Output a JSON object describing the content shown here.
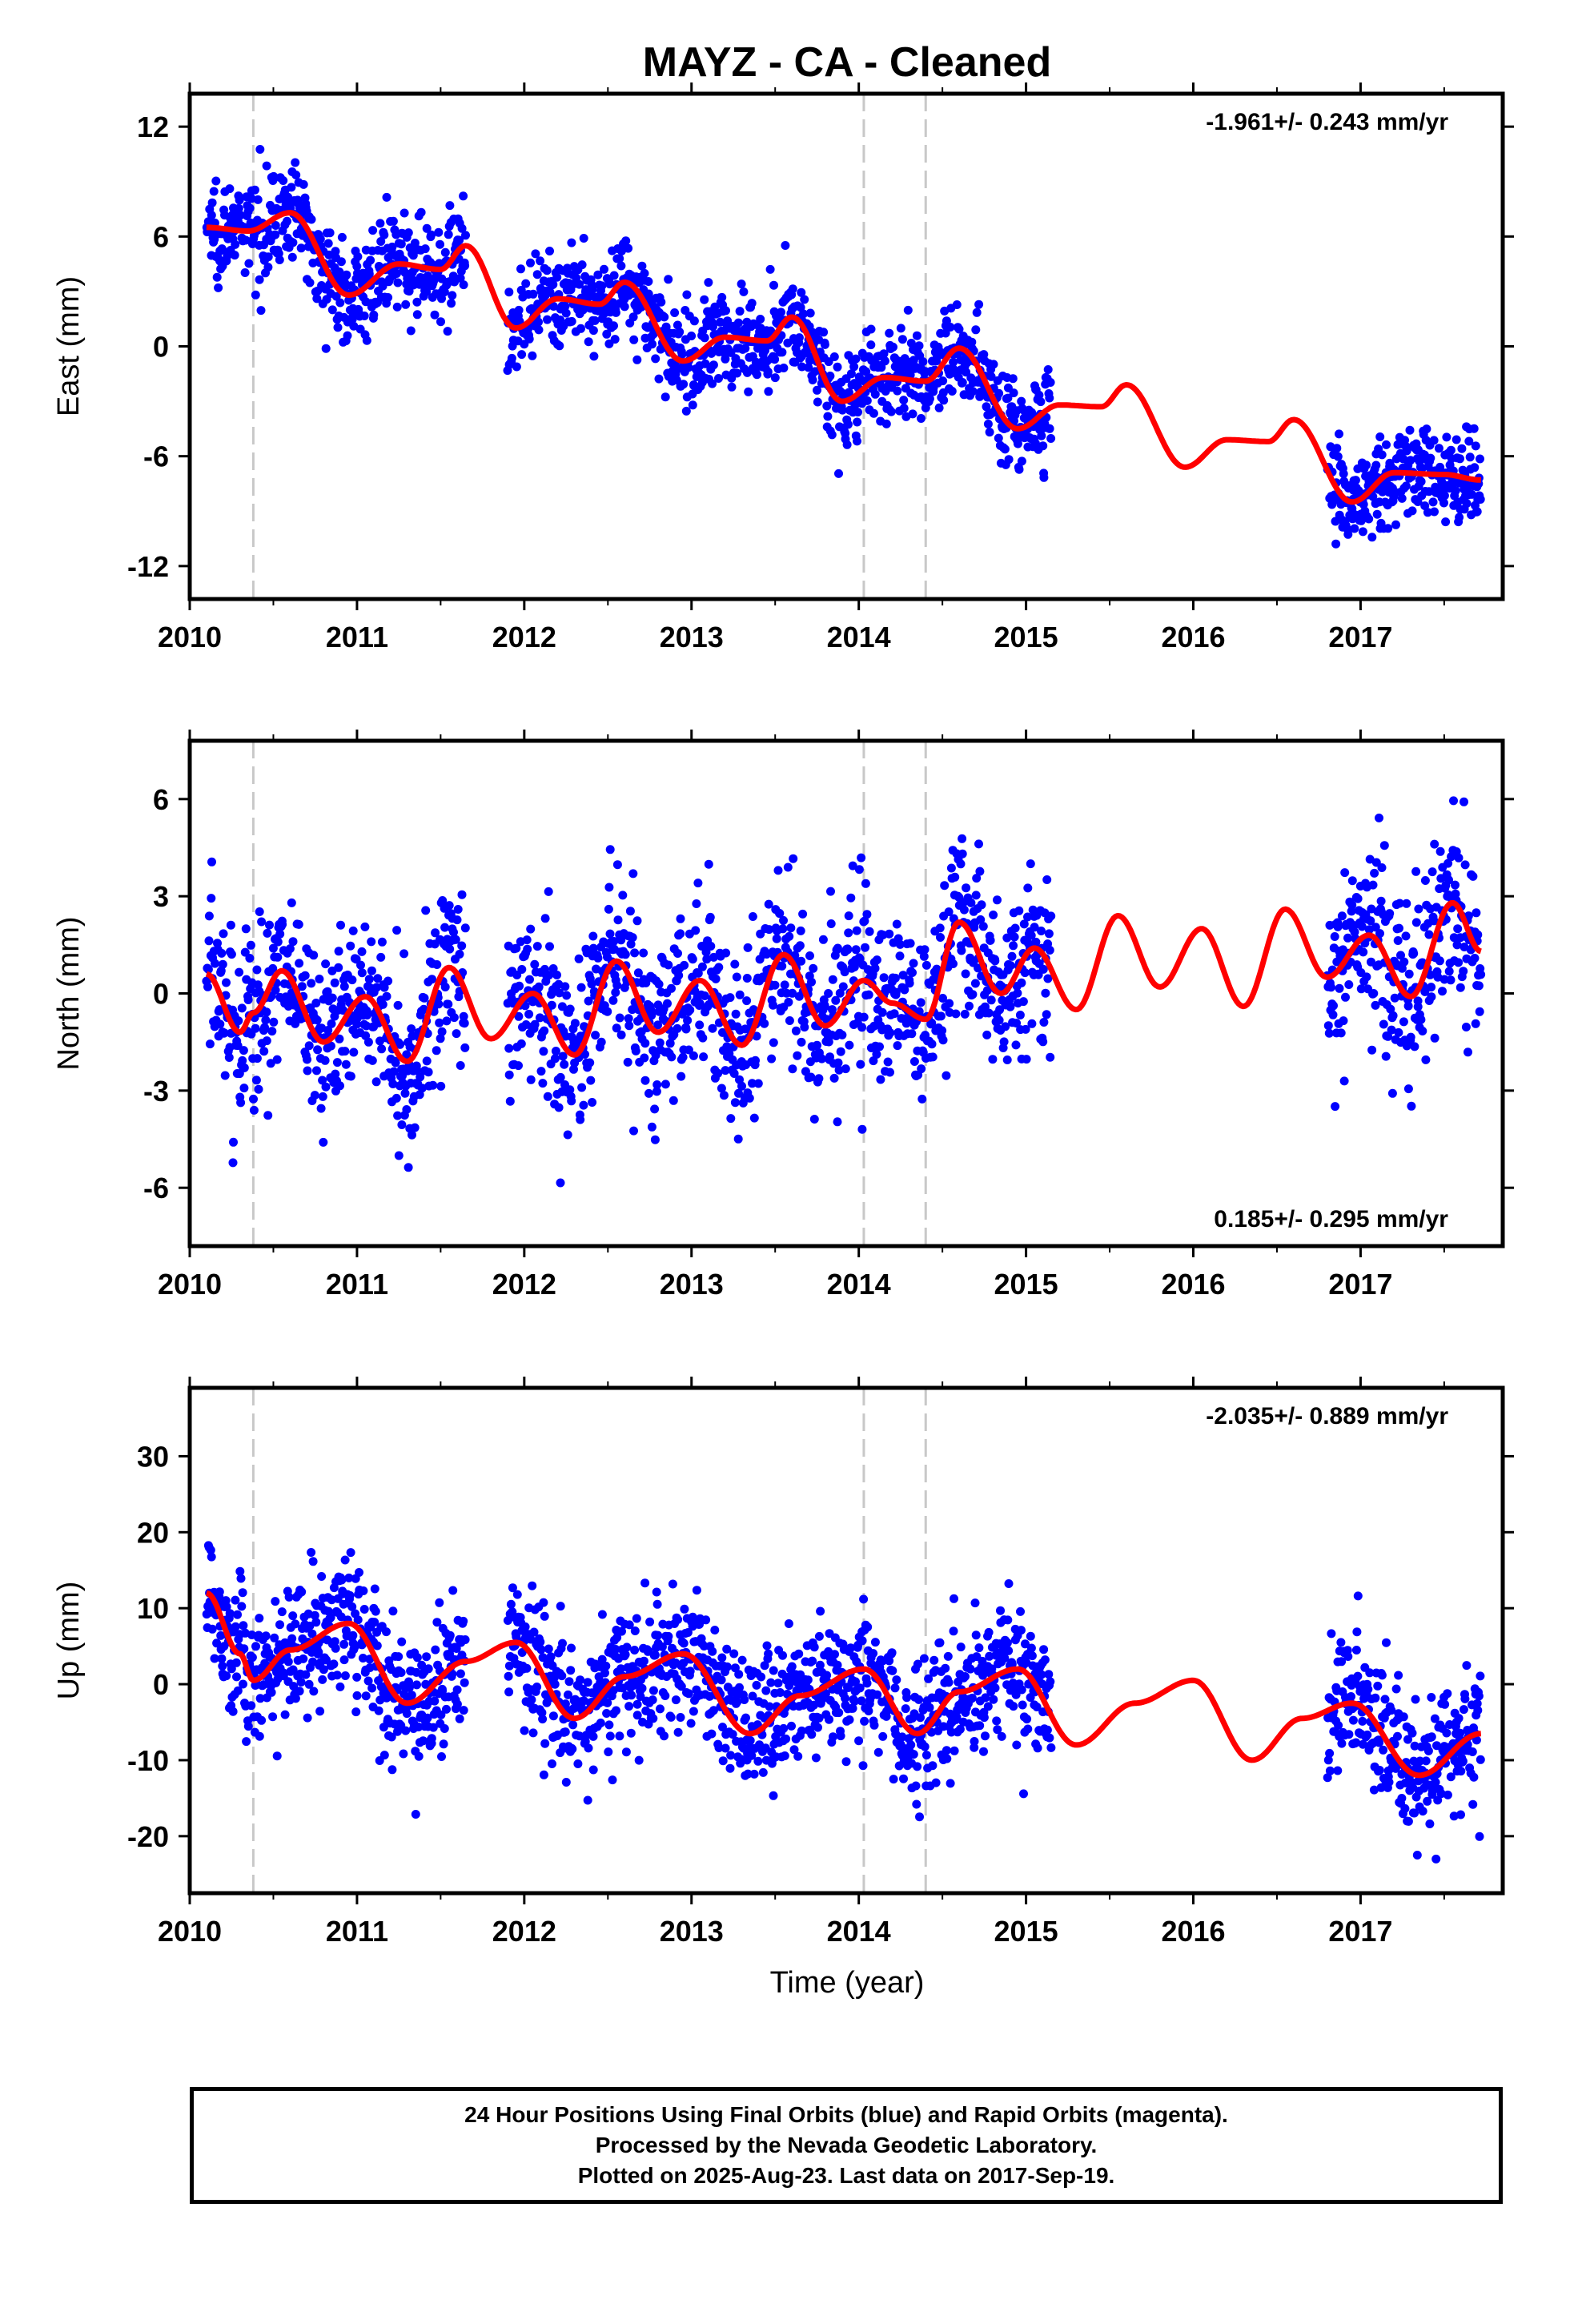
{
  "page": {
    "title": "MAYZ  - CA - Cleaned",
    "xlabel": "Time (year)"
  },
  "colors": {
    "points": "#0000ff",
    "fit": "#ff0000",
    "offset_lines": "#c8c8c8",
    "axis": "#000000"
  },
  "footer": {
    "line1": "24 Hour Positions Using Final Orbits (blue) and Rapid Orbits (magenta).",
    "line2": "Processed by the Nevada Geodetic Laboratory.",
    "line3": "Plotted on 2025-Aug-23. Last data on 2017-Sep-19."
  },
  "chart_data": [
    {
      "type": "scatter",
      "component": "east",
      "ylabel": "East (mm)",
      "rate_label": "-1.961+/- 0.243 mm/yr",
      "rate_label_position": "top-right",
      "xlim": [
        2010.0,
        2017.85
      ],
      "ylim": [
        -13.8,
        13.8
      ],
      "xticks": [
        2010,
        2011,
        2012,
        2013,
        2014,
        2015,
        2016,
        2017
      ],
      "yticks": [
        12,
        6,
        0,
        -6,
        -12
      ],
      "offsets": [
        2010.38,
        2014.03,
        2014.4
      ],
      "data_ranges": [
        [
          2010.1,
          2011.65
        ],
        [
          2011.9,
          2015.15
        ],
        [
          2016.8,
          2017.72
        ]
      ],
      "noise": 1.3,
      "fit": {
        "x": [
          2010.1,
          2010.35,
          2010.6,
          2010.95,
          2011.25,
          2011.5,
          2011.65,
          2011.95,
          2012.2,
          2012.45,
          2012.6,
          2012.95,
          2013.2,
          2013.45,
          2013.6,
          2013.9,
          2014.15,
          2014.4,
          2014.6,
          2014.95,
          2015.2,
          2015.45,
          2015.6,
          2015.95,
          2016.2,
          2016.45,
          2016.6,
          2016.95,
          2017.2,
          2017.5,
          2017.72
        ],
        "y": [
          6.5,
          6.3,
          7.3,
          2.8,
          4.5,
          4.2,
          5.5,
          1.0,
          2.6,
          2.3,
          3.5,
          -0.8,
          0.5,
          0.3,
          1.6,
          -3.0,
          -1.7,
          -1.9,
          -0.1,
          -4.5,
          -3.2,
          -3.3,
          -2.1,
          -6.6,
          -5.1,
          -5.2,
          -4.0,
          -8.5,
          -6.9,
          -7.0,
          -7.3
        ]
      }
    },
    {
      "type": "scatter",
      "component": "north",
      "ylabel": "North (mm)",
      "rate_label": "0.185+/- 0.295 mm/yr",
      "rate_label_position": "bottom-right",
      "xlim": [
        2010.0,
        2017.85
      ],
      "ylim": [
        -7.8,
        7.8
      ],
      "xticks": [
        2010,
        2011,
        2012,
        2013,
        2014,
        2015,
        2016,
        2017
      ],
      "yticks": [
        6,
        3,
        0,
        -3,
        -6
      ],
      "offsets": [
        2010.38,
        2014.03,
        2014.4
      ],
      "data_ranges": [
        [
          2010.1,
          2011.65
        ],
        [
          2011.9,
          2015.15
        ],
        [
          2016.8,
          2017.72
        ]
      ],
      "noise": 1.4,
      "fit": {
        "x": [
          2010.1,
          2010.3,
          2010.38,
          2010.55,
          2010.8,
          2011.05,
          2011.3,
          2011.55,
          2011.8,
          2012.05,
          2012.3,
          2012.55,
          2012.8,
          2013.05,
          2013.3,
          2013.55,
          2013.8,
          2014.03,
          2014.2,
          2014.4,
          2014.6,
          2014.85,
          2015.05,
          2015.3,
          2015.55,
          2015.8,
          2016.05,
          2016.3,
          2016.55,
          2016.8,
          2017.05,
          2017.3,
          2017.55,
          2017.72
        ],
        "y": [
          0.6,
          -1.2,
          -0.6,
          0.7,
          -1.5,
          -0.1,
          -2.1,
          0.8,
          -1.4,
          0.0,
          -1.9,
          1.0,
          -1.2,
          0.4,
          -1.6,
          1.2,
          -1.0,
          0.4,
          -0.3,
          -0.8,
          2.2,
          0.0,
          1.4,
          -0.5,
          2.4,
          0.2,
          2.0,
          -0.4,
          2.6,
          0.5,
          1.8,
          -0.1,
          2.8,
          1.3
        ]
      }
    },
    {
      "type": "scatter",
      "component": "up",
      "ylabel": "Up (mm)",
      "rate_label": "-2.035+/- 0.889 mm/yr",
      "rate_label_position": "top-right",
      "xlim": [
        2010.0,
        2017.85
      ],
      "ylim": [
        -27.5,
        39.0
      ],
      "xticks": [
        2010,
        2011,
        2012,
        2013,
        2014,
        2015,
        2016,
        2017
      ],
      "yticks": [
        30,
        20,
        10,
        0,
        -10,
        -20
      ],
      "offsets": [
        2010.38,
        2014.03,
        2014.4
      ],
      "data_ranges": [
        [
          2010.1,
          2011.65
        ],
        [
          2011.9,
          2015.15
        ],
        [
          2016.8,
          2017.72
        ]
      ],
      "noise": 4.5,
      "fit": {
        "x": [
          2010.1,
          2010.3,
          2010.38,
          2010.6,
          2010.95,
          2011.3,
          2011.65,
          2011.95,
          2012.3,
          2012.6,
          2012.95,
          2013.35,
          2013.65,
          2014.03,
          2014.35,
          2014.6,
          2014.95,
          2015.3,
          2015.65,
          2016.0,
          2016.35,
          2016.65,
          2016.95,
          2017.35,
          2017.72
        ],
        "y": [
          12.0,
          4.0,
          0.5,
          4.5,
          8.0,
          -2.5,
          3.0,
          5.5,
          -4.5,
          1.0,
          4.0,
          -6.5,
          -1.5,
          2.0,
          -6.5,
          -1.0,
          2.0,
          -8.0,
          -2.5,
          0.5,
          -10.0,
          -4.5,
          -2.5,
          -12.0,
          -6.5
        ]
      }
    }
  ]
}
